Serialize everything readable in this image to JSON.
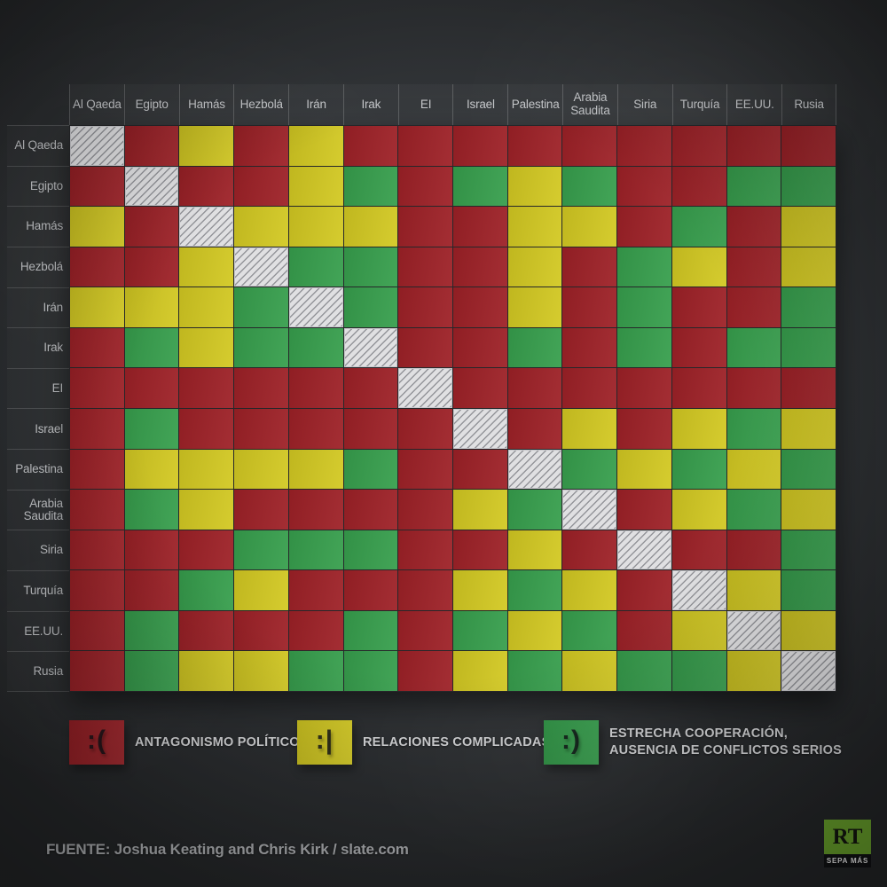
{
  "chart_data": {
    "type": "heatmap",
    "title": "",
    "entities": [
      "Al Qaeda",
      "Egipto",
      "Hamás",
      "Hezbolá",
      "Irán",
      "Irak",
      "EI",
      "Israel",
      "Palestina",
      "Arabia Saudita",
      "Siria",
      "Turquía",
      "EE.UU.",
      "Rusia"
    ],
    "cell_codes": {
      "R": "antagonismo político",
      "Y": "relaciones complicadas",
      "G": "estrecha cooperación",
      "X": "misma entidad (diagonal rayada)"
    },
    "matrix": [
      [
        "X",
        "R",
        "Y",
        "R",
        "Y",
        "R",
        "R",
        "R",
        "R",
        "R",
        "R",
        "R",
        "R",
        "R"
      ],
      [
        "R",
        "X",
        "R",
        "R",
        "Y",
        "G",
        "R",
        "G",
        "Y",
        "G",
        "R",
        "R",
        "G",
        "G"
      ],
      [
        "Y",
        "R",
        "X",
        "Y",
        "Y",
        "Y",
        "R",
        "R",
        "Y",
        "Y",
        "R",
        "G",
        "R",
        "Y"
      ],
      [
        "R",
        "R",
        "Y",
        "X",
        "G",
        "G",
        "R",
        "R",
        "Y",
        "R",
        "G",
        "Y",
        "R",
        "Y"
      ],
      [
        "Y",
        "Y",
        "Y",
        "G",
        "X",
        "G",
        "R",
        "R",
        "Y",
        "R",
        "G",
        "R",
        "R",
        "G"
      ],
      [
        "R",
        "G",
        "Y",
        "G",
        "G",
        "X",
        "R",
        "R",
        "G",
        "R",
        "G",
        "R",
        "G",
        "G"
      ],
      [
        "R",
        "R",
        "R",
        "R",
        "R",
        "R",
        "X",
        "R",
        "R",
        "R",
        "R",
        "R",
        "R",
        "R"
      ],
      [
        "R",
        "G",
        "R",
        "R",
        "R",
        "R",
        "R",
        "X",
        "R",
        "Y",
        "R",
        "Y",
        "G",
        "Y"
      ],
      [
        "R",
        "Y",
        "Y",
        "Y",
        "Y",
        "G",
        "R",
        "R",
        "X",
        "G",
        "Y",
        "G",
        "Y",
        "G"
      ],
      [
        "R",
        "G",
        "Y",
        "R",
        "R",
        "R",
        "R",
        "Y",
        "G",
        "X",
        "R",
        "Y",
        "G",
        "Y"
      ],
      [
        "R",
        "R",
        "R",
        "G",
        "G",
        "G",
        "R",
        "R",
        "Y",
        "R",
        "X",
        "R",
        "R",
        "G"
      ],
      [
        "R",
        "R",
        "G",
        "Y",
        "R",
        "R",
        "R",
        "Y",
        "G",
        "Y",
        "R",
        "X",
        "Y",
        "G"
      ],
      [
        "R",
        "G",
        "R",
        "R",
        "R",
        "G",
        "R",
        "G",
        "Y",
        "G",
        "R",
        "Y",
        "X",
        "Y"
      ],
      [
        "R",
        "G",
        "Y",
        "Y",
        "G",
        "G",
        "R",
        "Y",
        "G",
        "Y",
        "G",
        "G",
        "Y",
        "X"
      ]
    ],
    "colors": {
      "red": "#9e2127",
      "yellow": "#d3c922",
      "green": "#379f4d",
      "diagonal": "#dfdfe1",
      "gridline": "#26272a"
    },
    "legend_position": "bottom",
    "legend": [
      {
        "code": "R",
        "emoticon": ":(",
        "label": "ANTAGONISMO POLÍTICO",
        "label2": "",
        "color": "#9e2127"
      },
      {
        "code": "Y",
        "emoticon": ":|",
        "label": "RELACIONES COMPLICADAS",
        "label2": "",
        "color": "#d3c922"
      },
      {
        "code": "G",
        "emoticon": ":)",
        "label": "ESTRECHA COOPERACIÓN,",
        "label2": "AUSENCIA DE CONFLICTOS SERIOS",
        "color": "#379f4d"
      }
    ]
  },
  "footer": {
    "source": "FUENTE: Joshua Keating and Chris Kirk / slate.com"
  },
  "logo": {
    "brand": "RT",
    "tagline": "SEPA MÁS",
    "color": "#6aa32c"
  }
}
